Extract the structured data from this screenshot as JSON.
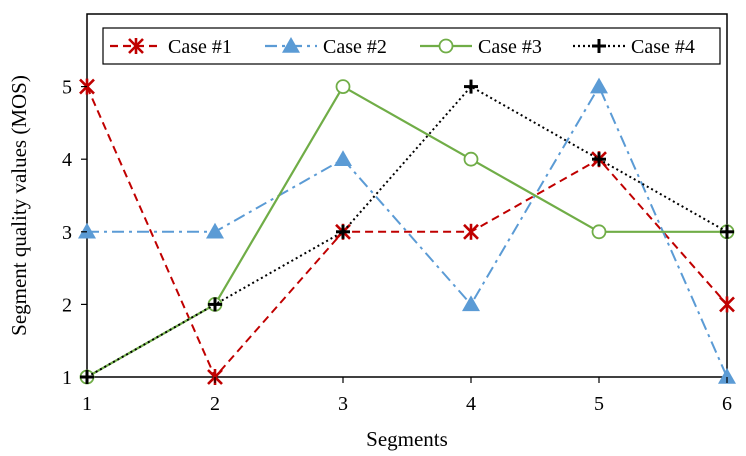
{
  "chart_data": {
    "type": "line",
    "xlabel": "Segments",
    "ylabel": "Segment quality values  (MOS)",
    "categories": [
      1,
      2,
      3,
      4,
      5,
      6
    ],
    "xlim": [
      1,
      6
    ],
    "ylim": [
      1,
      6
    ],
    "y_ticks": [
      1,
      2,
      3,
      4,
      5
    ],
    "grid": false,
    "legend_position": "top",
    "series": [
      {
        "name": "Case #1",
        "values": [
          5,
          1,
          3,
          3,
          4,
          2
        ],
        "color": "#c00000",
        "marker": "asterisk",
        "dash": "dashed"
      },
      {
        "name": "Case #2",
        "values": [
          3,
          3,
          4,
          2,
          5,
          1
        ],
        "color": "#5b9bd5",
        "marker": "triangle",
        "dash": "dash-dot"
      },
      {
        "name": "Case #3",
        "values": [
          1,
          2,
          5,
          4,
          3,
          3
        ],
        "color": "#70ad47",
        "marker": "circle",
        "dash": "solid"
      },
      {
        "name": "Case #4",
        "values": [
          1,
          2,
          3,
          5,
          4,
          3
        ],
        "color": "#000000",
        "marker": "plus",
        "dash": "dotted"
      }
    ]
  }
}
